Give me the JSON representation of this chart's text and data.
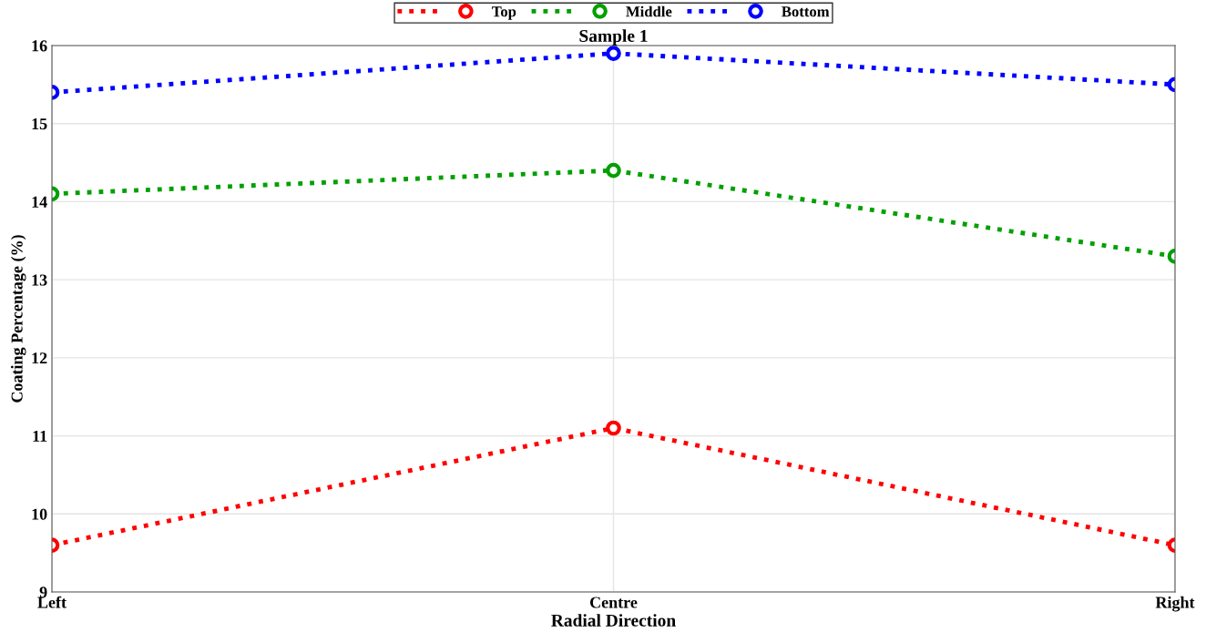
{
  "chart_data": {
    "type": "line",
    "title": "Sample 1",
    "xlabel": "Radial Direction",
    "ylabel": "Coating Percentage (%)",
    "categories": [
      "Left",
      "Centre",
      "Right"
    ],
    "series": [
      {
        "name": "Top",
        "color": "#ff0000",
        "values": [
          9.6,
          11.1,
          9.6
        ]
      },
      {
        "name": "Middle",
        "color": "#00a000",
        "values": [
          14.1,
          14.4,
          13.3
        ]
      },
      {
        "name": "Bottom",
        "color": "#0000ff",
        "values": [
          15.4,
          15.9,
          15.5
        ]
      }
    ],
    "ylim": [
      9,
      16
    ],
    "yticks": [
      9,
      10,
      11,
      12,
      13,
      14,
      15,
      16
    ],
    "grid": true,
    "legend": "top",
    "marker": "circle",
    "line_style": "dotted"
  }
}
